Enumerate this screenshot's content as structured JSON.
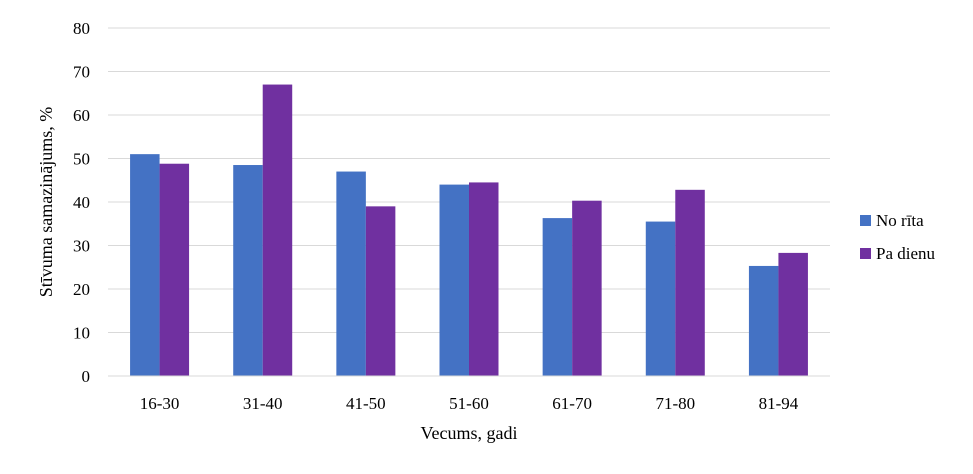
{
  "chart_data": {
    "type": "bar",
    "title": "",
    "xlabel": "Vecums, gadi",
    "ylabel": "Stīvuma samazinājums, %",
    "categories": [
      "16-30",
      "31-40",
      "41-50",
      "51-60",
      "61-70",
      "71-80",
      "81-94"
    ],
    "series": [
      {
        "name": "No rīta",
        "color": "#4472C4",
        "values": [
          51,
          48.5,
          47,
          44,
          36.3,
          35.5,
          25.3
        ]
      },
      {
        "name": "Pa dienu",
        "color": "#7030A0",
        "values": [
          48.8,
          67,
          39,
          44.5,
          40.3,
          42.8,
          28.3
        ]
      }
    ],
    "ylim": [
      0,
      80
    ],
    "yticks": [
      0,
      10,
      20,
      30,
      40,
      50,
      60,
      70,
      80
    ],
    "grid": true,
    "legend": "right"
  }
}
